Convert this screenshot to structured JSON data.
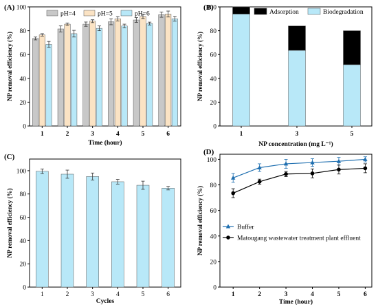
{
  "chart_data": [
    {
      "panel": "(A)",
      "type": "bar",
      "xlabel": "Time (hour)",
      "ylabel": "NP removal efficiency (%)",
      "ylim": [
        0,
        100
      ],
      "yticks": [
        "0",
        "20",
        "40",
        "60",
        "80",
        "100"
      ],
      "categories": [
        "1",
        "2",
        "3",
        "4",
        "5",
        "6"
      ],
      "legend_position": "top",
      "series": [
        {
          "name": "pH=4",
          "color": "#c8c8c8",
          "values": [
            73.5,
            81.5,
            85.5,
            87.5,
            89.0,
            93.5
          ],
          "errors": [
            1.2,
            2.5,
            1.8,
            2.5,
            2.0,
            2.2
          ]
        },
        {
          "name": "pH=5",
          "color": "#fbe3c4",
          "values": [
            76.5,
            85.5,
            88.0,
            90.0,
            92.0,
            94.0
          ],
          "errors": [
            1.0,
            1.0,
            1.2,
            1.8,
            1.8,
            2.5
          ]
        },
        {
          "name": "pH=6",
          "color": "#b8e8f8",
          "values": [
            68.5,
            77.5,
            82.0,
            84.0,
            86.0,
            90.0
          ],
          "errors": [
            2.5,
            2.8,
            2.0,
            1.5,
            1.2,
            2.0
          ]
        }
      ]
    },
    {
      "panel": "(B)",
      "type": "bar",
      "stacked": true,
      "xlabel": "NP concentration (mg L⁻¹)",
      "ylabel": "NP removal efficiency (%)",
      "ylim": [
        0,
        100
      ],
      "yticks": [
        "0",
        "20",
        "40",
        "60",
        "80",
        "100"
      ],
      "categories": [
        "1",
        "3",
        "5"
      ],
      "legend_position": "top-right",
      "series": [
        {
          "name": "Biodegradation",
          "color": "#b8e8f8",
          "values": [
            94.0,
            63.5,
            51.5
          ]
        },
        {
          "name": "Adsorption",
          "color": "#000000",
          "values": [
            6.0,
            20.5,
            28.5
          ]
        }
      ]
    },
    {
      "panel": "(C)",
      "type": "bar",
      "xlabel": "Cycles",
      "ylabel": "NP removal efficiency (%)",
      "ylim": [
        0,
        110
      ],
      "yticks": [
        "0",
        "20",
        "40",
        "60",
        "80",
        "100"
      ],
      "categories": [
        "1",
        "2",
        "3",
        "4",
        "5",
        "6"
      ],
      "series": [
        {
          "name": "",
          "color": "#b8e8f8",
          "values": [
            99.5,
            97.0,
            95.0,
            90.5,
            87.5,
            85.0
          ],
          "errors": [
            2.0,
            3.5,
            3.0,
            2.0,
            3.5,
            1.5
          ]
        }
      ]
    },
    {
      "panel": "(D)",
      "type": "line",
      "xlabel": "Time (hour)",
      "ylabel": "NP removal efficiency (%)",
      "xlim": [
        0.5,
        6.25
      ],
      "ylim": [
        0,
        104
      ],
      "yticks": [
        "0",
        "20",
        "40",
        "60",
        "80",
        "100"
      ],
      "xticks": [
        "1",
        "2",
        "3",
        "4",
        "5",
        "6"
      ],
      "legend_position": "middle-left",
      "series": [
        {
          "name": "Buffer",
          "color": "#1f6fb0",
          "marker": "triangle",
          "x": [
            1,
            2,
            3,
            4,
            5,
            6
          ],
          "values": [
            85.5,
            93.5,
            96.5,
            97.5,
            98.5,
            100.0
          ],
          "errors": [
            3.5,
            3.0,
            3.5,
            3.0,
            3.0,
            2.0
          ]
        },
        {
          "name": "Matougang wastewater treatment plant effluent",
          "color": "#000000",
          "marker": "circle",
          "x": [
            1,
            2,
            3,
            4,
            5,
            6
          ],
          "values": [
            73.5,
            82.5,
            88.5,
            89.0,
            92.0,
            93.0
          ],
          "errors": [
            3.5,
            2.0,
            2.0,
            3.5,
            3.5,
            3.5
          ]
        }
      ]
    }
  ]
}
